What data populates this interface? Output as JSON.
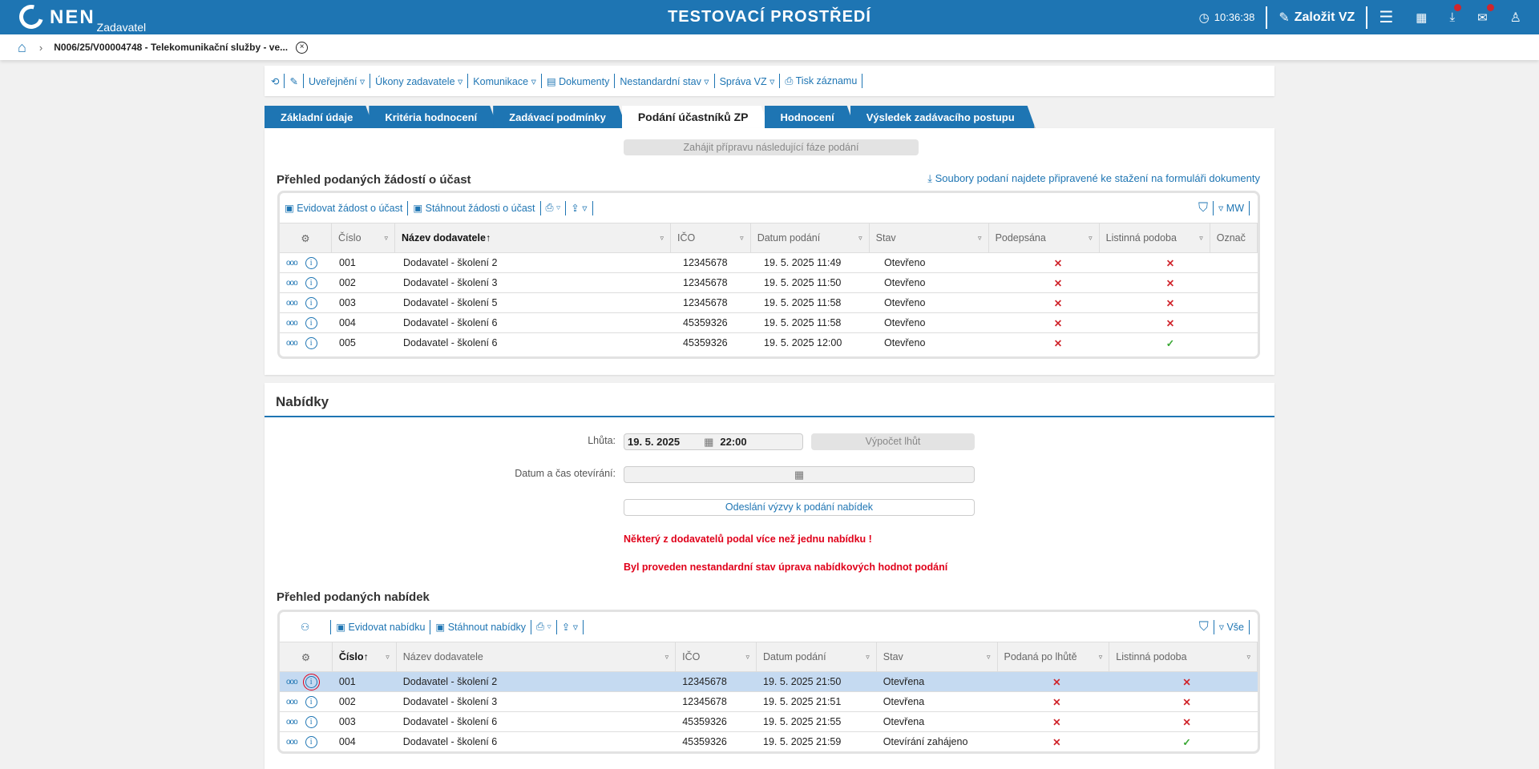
{
  "header": {
    "logo": "NEN",
    "logo_sub": "Zadavatel",
    "environment": "TESTOVACÍ PROSTŘEDÍ",
    "time": "10:36:38",
    "create_label": "Založit VZ",
    "colors": {
      "brand": "#1e75b3",
      "badge": "#d0262d"
    }
  },
  "breadcrumb": {
    "title": "N006/25/V00004748 - Telekomunikační služby - ve..."
  },
  "toolbar": {
    "items": [
      "Uveřejnění",
      "Úkony zadavatele",
      "Komunikace",
      "Dokumenty",
      "Nestandardní stav",
      "Správa VZ",
      "Tisk záznamu"
    ]
  },
  "tabs": [
    "Základní údaje",
    "Kritéria hodnocení",
    "Zadávací podmínky",
    "Podání účastníků ZP",
    "Hodnocení",
    "Výsledek zadávacího postupu"
  ],
  "active_tab": "Podání účastníků ZP",
  "next_phase_button": "Zahájit přípravu následující fáze podání",
  "requests": {
    "title": "Přehled podaných žádostí o účast",
    "download_link": "Soubory podaní najdete připravené ke stažení na formuláři dokumenty",
    "toolbar": {
      "register": "Evidovat žádost o účast",
      "download": "Stáhnout žádosti o účast",
      "view": "MW"
    },
    "columns": [
      "Číslo",
      "Název dodavatele",
      "IČO",
      "Datum podání",
      "Stav",
      "Podepsána",
      "Listinná podoba",
      "Označ"
    ],
    "rows": [
      [
        "001",
        "Dodavatel - školení 2",
        "12345678",
        "19. 5. 2025 11:49",
        "Otevřeno",
        false,
        false
      ],
      [
        "002",
        "Dodavatel - školení 3",
        "12345678",
        "19. 5. 2025 11:50",
        "Otevřeno",
        false,
        false
      ],
      [
        "003",
        "Dodavatel - školení 5",
        "12345678",
        "19. 5. 2025 11:58",
        "Otevřeno",
        false,
        false
      ],
      [
        "004",
        "Dodavatel - školení 6",
        "45359326",
        "19. 5. 2025 11:58",
        "Otevřeno",
        false,
        false
      ],
      [
        "005",
        "Dodavatel - školení 6",
        "45359326",
        "19. 5. 2025 12:00",
        "Otevřeno",
        false,
        true
      ]
    ]
  },
  "offers_section": {
    "title": "Nabídky",
    "deadline_label": "Lhůta:",
    "deadline_date": "19. 5. 2025",
    "deadline_time": "22:00",
    "calc_button": "Výpočet lhůt",
    "opening_label": "Datum a čas otevírání:",
    "send_button": "Odeslání výzvy k podání nabídek",
    "warning1": "Některý z dodavatelů podal více než jednu nabídku !",
    "warning2": "Byl proveden nestandardní stav úprava nabídkových hodnot podání"
  },
  "offers": {
    "title": "Přehled podaných nabídek",
    "toolbar": {
      "register": "Evidovat nabídku",
      "download": "Stáhnout nabídky",
      "view": "Vše"
    },
    "columns": [
      "Číslo",
      "Název dodavatele",
      "IČO",
      "Datum podání",
      "Stav",
      "Podaná po lhůtě",
      "Listinná podoba"
    ],
    "rows": [
      [
        "001",
        "Dodavatel - školení 2",
        "12345678",
        "19. 5. 2025 21:50",
        "Otevřena",
        false,
        false
      ],
      [
        "002",
        "Dodavatel - školení 3",
        "12345678",
        "19. 5. 2025 21:51",
        "Otevřena",
        false,
        false
      ],
      [
        "003",
        "Dodavatel - školení 6",
        "45359326",
        "19. 5. 2025 21:55",
        "Otevřena",
        false,
        false
      ],
      [
        "004",
        "Dodavatel - školení 6",
        "45359326",
        "19. 5. 2025 21:59",
        "Otevírání zahájeno",
        false,
        true
      ]
    ],
    "selected_row": 0
  }
}
